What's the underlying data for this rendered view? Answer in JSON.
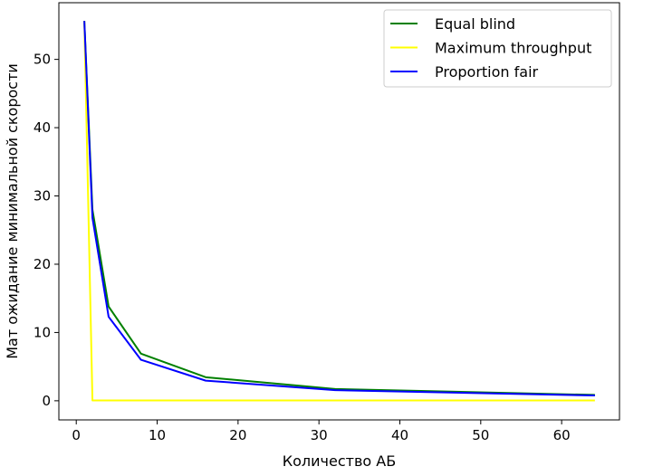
{
  "chart_data": {
    "type": "line",
    "title": "",
    "xlabel": "Количество АБ",
    "ylabel": "Мат ожидание минимальной скорости",
    "xlim": [
      -2.15,
      67.15
    ],
    "ylim": [
      -2.8,
      58.3
    ],
    "xticks": [
      0,
      10,
      20,
      30,
      40,
      50,
      60
    ],
    "yticks": [
      0,
      10,
      20,
      30,
      40,
      50
    ],
    "grid": false,
    "legend_position": "top-right",
    "series": [
      {
        "name": "Equal blind",
        "color": "#008000",
        "x": [
          1,
          2,
          4,
          8,
          16,
          32,
          64
        ],
        "y": [
          55.5,
          28.0,
          13.8,
          6.9,
          3.45,
          1.72,
          0.86
        ]
      },
      {
        "name": "Maximum throughput",
        "color": "#ffff00",
        "x": [
          1,
          2,
          4,
          8,
          16,
          32,
          64
        ],
        "y": [
          55.5,
          0.05,
          0.05,
          0.05,
          0.05,
          0.05,
          0.05
        ]
      },
      {
        "name": "Proportion fair",
        "color": "#0000ff",
        "x": [
          1,
          2,
          4,
          8,
          16,
          32,
          64
        ],
        "y": [
          55.5,
          26.8,
          12.3,
          6.0,
          2.95,
          1.55,
          0.78
        ]
      }
    ]
  }
}
